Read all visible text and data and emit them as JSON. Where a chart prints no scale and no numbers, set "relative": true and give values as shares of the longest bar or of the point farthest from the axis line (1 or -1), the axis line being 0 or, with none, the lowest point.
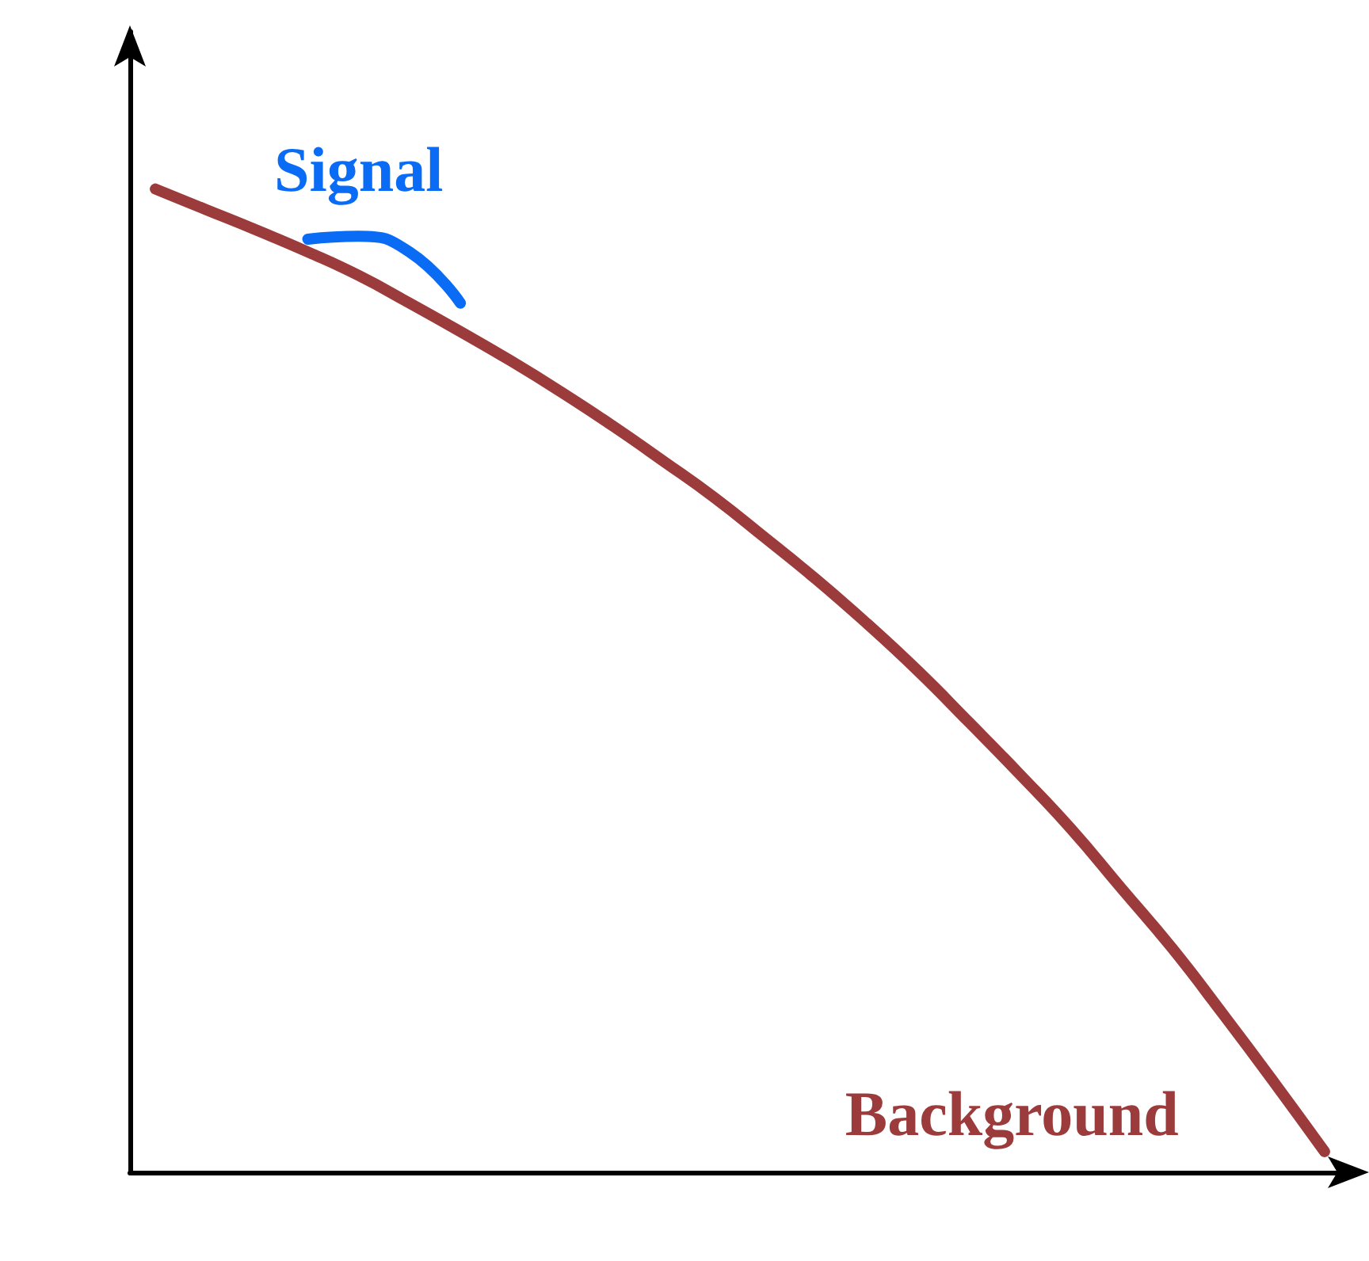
{
  "chart_data": {
    "type": "line",
    "relative": true,
    "grid": false,
    "marker": "none",
    "line_style": "solid",
    "categories": [
      null,
      null,
      null,
      null,
      null,
      null,
      null,
      null,
      null,
      null,
      null,
      null,
      null,
      null,
      null,
      null,
      null,
      null,
      null,
      null,
      null,
      null,
      null,
      null
    ],
    "series": [
      {
        "name": "Background",
        "color": "#9b3b3b",
        "values": [
          1,
          0.979,
          0.958,
          0.936,
          0.912,
          0.884,
          0.855,
          0.825,
          0.793,
          0.759,
          0.723,
          0.686,
          0.645,
          0.603,
          0.558,
          0.51,
          0.458,
          0.405,
          0.35,
          0.289,
          0.228,
          0.161,
          0.092,
          0.021
        ]
      },
      {
        "name": "Signal",
        "color": "#0a6cf5",
        "values": [
          null,
          null,
          null,
          0.949,
          0.952,
          0.936,
          0.884,
          null,
          null,
          null,
          null,
          null,
          null,
          null,
          null,
          null,
          null,
          null,
          null,
          null,
          null,
          null,
          null,
          null
        ]
      }
    ]
  }
}
